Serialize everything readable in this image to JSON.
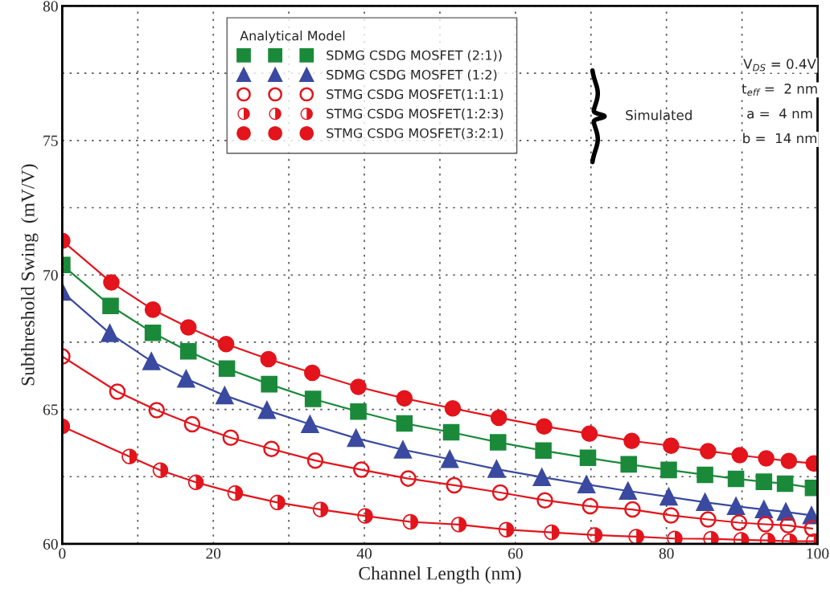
{
  "chart_data": {
    "type": "line",
    "xlabel": "Channel Length (nm)",
    "ylabel": "Subthreshold Swing  (mV/V)",
    "xlim": [
      0,
      100
    ],
    "ylim": [
      60,
      80
    ],
    "xticks": [
      0,
      {
        "value": 10,
        "label": null
      },
      20,
      {
        "value": 30,
        "label": null
      },
      40,
      {
        "value": 50,
        "label": null
      },
      60,
      {
        "value": 70,
        "label": null
      },
      80,
      {
        "value": 90,
        "label": null
      },
      100
    ],
    "yticks": [
      60,
      {
        "value": 62.5,
        "label": null
      },
      65,
      {
        "value": 67.5,
        "label": null
      },
      70,
      {
        "value": 72.5,
        "label": null
      },
      75,
      {
        "value": 77.5,
        "label": null
      },
      80
    ],
    "grid": true,
    "legend": "top",
    "line_style": "solid",
    "annotations": [
      "Analytical Model",
      "Simulated",
      "V$_{DS}$ = 0.4V",
      "t$_{eff}$ =  2 nm",
      "a =  4 nm",
      "b =  14 nm"
    ],
    "series": [
      {
        "name": "SDMG CSDG MOSFET (2:1))",
        "color": "#1a8a3a",
        "marker": "square",
        "x": [
          0,
          6.4,
          12,
          16.7,
          21.8,
          27.4,
          33.2,
          39.2,
          45.3,
          51.5,
          57.7,
          63.7,
          69.6,
          75,
          80.3,
          85.1,
          89.2,
          92.9,
          95.7,
          99.4
        ],
        "values": [
          70.37,
          68.85,
          67.85,
          67.16,
          66.52,
          65.94,
          65.39,
          64.92,
          64.48,
          64.15,
          63.78,
          63.47,
          63.2,
          62.96,
          62.75,
          62.57,
          62.42,
          62.31,
          62.24,
          62.08
        ]
      },
      {
        "name": "SDMG CSDG MOSFET (1:2)",
        "color": "#3a4aa0",
        "marker": "triangle",
        "x": [
          0,
          6.3,
          11.8,
          16.4,
          21.5,
          27.1,
          32.8,
          38.9,
          45.1,
          51.3,
          57.5,
          63.5,
          69.4,
          74.9,
          80.3,
          85.1,
          89.2,
          92.9,
          95.8,
          99.2
        ],
        "values": [
          69.37,
          67.83,
          66.79,
          66.14,
          65.52,
          64.97,
          64.45,
          63.93,
          63.5,
          63.15,
          62.78,
          62.48,
          62.21,
          61.97,
          61.75,
          61.55,
          61.4,
          61.28,
          61.19,
          61.06
        ]
      },
      {
        "name": "STMG CSDG MOSFET(1:1:1)",
        "color": "#e3141c",
        "marker": "circle",
        "x": [
          0,
          7.3,
          12.5,
          17.2,
          22.3,
          27.7,
          33.5,
          39.6,
          45.8,
          51.9,
          58,
          63.9,
          69.9,
          75.5,
          80.6,
          85.5,
          89.6,
          93.1,
          96.1,
          99.3
        ],
        "values": [
          66.97,
          65.66,
          64.97,
          64.45,
          63.95,
          63.53,
          63.1,
          62.76,
          62.43,
          62.18,
          61.91,
          61.62,
          61.4,
          61.28,
          61.06,
          60.91,
          60.79,
          60.73,
          60.69,
          60.57
        ]
      },
      {
        "name": "STMG CSDG MOSFET(1:2:3)",
        "color": "#e3141c",
        "marker": "circle",
        "x": [
          0,
          8.9,
          13,
          17.7,
          22.9,
          28.5,
          34.2,
          40.1,
          46.1,
          52.5,
          58.8,
          64.8,
          70.5,
          76,
          81.1,
          85.9,
          89.9,
          93.4,
          96.3,
          99.5
        ],
        "values": [
          64.37,
          63.25,
          62.74,
          62.29,
          61.89,
          61.54,
          61.28,
          61.04,
          60.82,
          60.72,
          60.53,
          60.43,
          60.33,
          60.27,
          60.2,
          60.19,
          60.15,
          60.13,
          60.1,
          60.1
        ]
      },
      {
        "name": "STMG CSDG MOSFET(3:2:1)",
        "color": "#e3141c",
        "marker": "circle",
        "x": [
          0,
          6.5,
          12,
          16.7,
          21.7,
          27.3,
          33.1,
          39.2,
          45.3,
          51.7,
          57.8,
          63.8,
          69.8,
          75.4,
          80.6,
          85.5,
          89.7,
          93.2,
          96.2,
          99.5
        ],
        "values": [
          71.27,
          69.72,
          68.71,
          68.05,
          67.43,
          66.87,
          66.36,
          65.84,
          65.41,
          65.04,
          64.69,
          64.37,
          64.1,
          63.83,
          63.65,
          63.45,
          63.3,
          63.18,
          63.08,
          62.99
        ]
      }
    ]
  }
}
